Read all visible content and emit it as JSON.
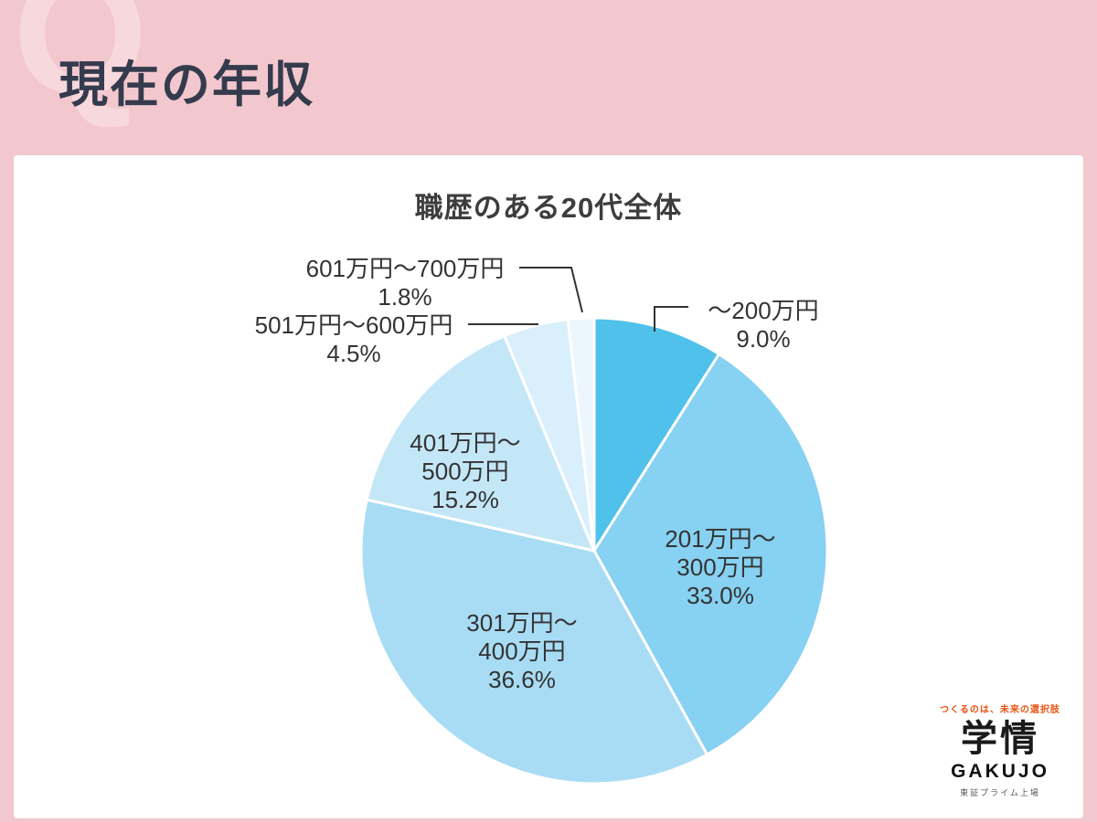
{
  "page": {
    "title": "現在の年収",
    "watermark": "Q"
  },
  "chart_data": {
    "type": "pie",
    "title": "職歴のある20代全体",
    "start_angle_deg": 0,
    "direction": "clockwise",
    "legend_position": "none",
    "slices": [
      {
        "label": "〜200万円",
        "value": 9.0,
        "pct_label": "9.0%",
        "color": "#4fc1ea"
      },
      {
        "label": "201万円〜300万円",
        "value": 33.0,
        "pct_label": "33.0%",
        "color": "#87d1f2"
      },
      {
        "label": "301万円〜400万円",
        "value": 36.6,
        "pct_label": "36.6%",
        "color": "#a8dcf4"
      },
      {
        "label": "401万円〜500万円",
        "value": 15.2,
        "pct_label": "15.2%",
        "color": "#c4e7f8"
      },
      {
        "label": "501万円〜600万円",
        "value": 4.5,
        "pct_label": "4.5%",
        "color": "#d9effb"
      },
      {
        "label": "601万円〜700万円",
        "value": 1.8,
        "pct_label": "1.8%",
        "color": "#ecf7fd"
      }
    ]
  },
  "logo": {
    "tagline": "つくるのは、未来の選択肢",
    "name_kanji": "学情",
    "name_latin": "GAKUJO",
    "listing": "東証プライム上場",
    "accent_color": "#e95513"
  },
  "colors": {
    "background": "#f2c7ce",
    "watermark": "#f7d8dd",
    "title_text": "#343b4d",
    "label_text": "#333333",
    "card": "#ffffff",
    "leader_line": "#333333"
  }
}
